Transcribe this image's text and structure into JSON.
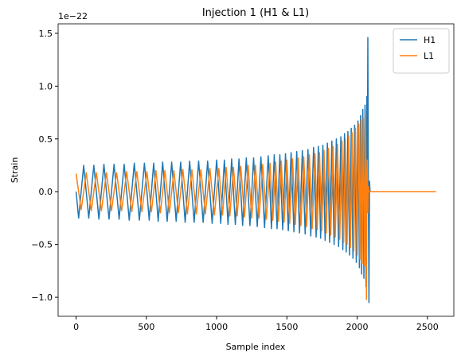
{
  "chart_data": {
    "type": "line",
    "title": "Injection 1 (H1 & L1)",
    "x_label": "Sample index",
    "y_label": "Strain",
    "y_offset_label": "1e−22",
    "xlim": [
      -128,
      2688
    ],
    "xticks": [
      0,
      500,
      1000,
      1500,
      2000,
      2500
    ],
    "ylim": [
      -1.18,
      1.59
    ],
    "yticks": [
      {
        "value": -1,
        "label": "−1.0"
      },
      {
        "value": -0.5,
        "label": "−0.5"
      },
      {
        "value": 0,
        "label": "0.0"
      },
      0.5,
      {
        "value": 1,
        "label": "1.0"
      },
      1.5
    ],
    "legend": "upper right",
    "x": [
      0,
      18,
      36,
      54,
      72,
      90,
      108,
      126,
      144,
      162,
      180,
      198,
      216,
      234,
      252,
      270,
      288,
      306,
      324,
      342,
      360,
      378,
      396,
      414,
      432,
      450,
      468,
      486,
      504,
      520,
      536,
      552,
      568,
      584,
      600,
      616,
      632,
      648,
      664,
      680,
      696,
      712,
      728,
      744,
      760,
      776,
      792,
      808,
      824,
      840,
      856,
      872,
      888,
      904,
      920,
      936,
      952,
      968,
      984,
      1000,
      1016,
      1029,
      1042,
      1055,
      1068,
      1081,
      1094,
      1107,
      1120,
      1133,
      1146,
      1159,
      1172,
      1185,
      1198,
      1211,
      1224,
      1237,
      1250,
      1263,
      1276,
      1289,
      1302,
      1315,
      1328,
      1341,
      1354,
      1367,
      1380,
      1390,
      1400,
      1410,
      1420,
      1430,
      1440,
      1450,
      1460,
      1470,
      1480,
      1490,
      1500,
      1510,
      1520,
      1530,
      1540,
      1550,
      1560,
      1570,
      1580,
      1590,
      1600,
      1610,
      1620,
      1630,
      1640,
      1650,
      1660,
      1670,
      1680,
      1690,
      1700,
      1708,
      1716,
      1724,
      1732,
      1740,
      1748,
      1756,
      1764,
      1772,
      1780,
      1788,
      1796,
      1804,
      1812,
      1820,
      1828,
      1836,
      1844,
      1852,
      1860,
      1868,
      1876,
      1884,
      1892,
      1898,
      1904,
      1910,
      1916,
      1922,
      1928,
      1934,
      1940,
      1946,
      1952,
      1958,
      1964,
      1970,
      1976,
      1982,
      1988,
      1994,
      2000,
      2006,
      2012,
      2016,
      2020,
      2024,
      2028,
      2032,
      2036,
      2040,
      2044,
      2048,
      2052,
      2056,
      2060,
      2063,
      2066,
      2069,
      2072,
      2076,
      2080,
      2084,
      2088,
      2092,
      2100,
      2560
    ],
    "series": [
      {
        "name": "H1",
        "color": "#1f77b4",
        "values": [
          0,
          -0.25,
          0,
          0.25,
          0,
          -0.25,
          0,
          0.25,
          0,
          -0.26,
          0,
          0.26,
          0,
          -0.26,
          0,
          0.26,
          0,
          -0.26,
          0,
          0.26,
          0,
          -0.27,
          0,
          0.27,
          0,
          -0.27,
          0,
          0.27,
          0,
          -0.27,
          0,
          0.27,
          0,
          -0.28,
          0,
          0.28,
          0,
          -0.28,
          0,
          0.28,
          0,
          -0.28,
          0,
          0.28,
          0,
          -0.29,
          0,
          0.29,
          0,
          -0.29,
          0,
          0.29,
          0,
          -0.29,
          0,
          0.29,
          0,
          -0.3,
          0,
          0.3,
          0,
          -0.3,
          0,
          0.3,
          0,
          -0.31,
          0,
          0.31,
          0,
          -0.31,
          0,
          0.31,
          0,
          -0.32,
          0,
          0.32,
          0,
          -0.32,
          0,
          0.32,
          0,
          -0.33,
          0,
          0.33,
          0,
          -0.34,
          0,
          0.34,
          0,
          -0.35,
          0,
          0.35,
          0,
          -0.35,
          0,
          0.35,
          0,
          -0.36,
          0,
          0.36,
          0,
          -0.37,
          0,
          0.37,
          0,
          -0.38,
          0,
          0.38,
          0,
          -0.39,
          0,
          0.39,
          0,
          -0.4,
          0,
          0.4,
          0,
          -0.42,
          0,
          0.42,
          0,
          -0.43,
          0,
          0.43,
          0,
          -0.44,
          0,
          0.44,
          0,
          -0.46,
          0,
          0.46,
          0,
          -0.48,
          0,
          0.48,
          0,
          -0.5,
          0,
          0.5,
          0,
          -0.52,
          0,
          0.52,
          0,
          -0.55,
          0,
          0.55,
          0,
          -0.57,
          0,
          0.57,
          0,
          -0.6,
          0,
          0.6,
          0,
          -0.63,
          0,
          0.63,
          0,
          -0.67,
          0,
          0.67,
          0,
          -0.72,
          0,
          0.72,
          0,
          -0.78,
          0,
          0.78,
          0,
          -0.82,
          0,
          0.82,
          0,
          -0.9,
          0,
          0.9,
          0,
          1.46,
          0,
          -1.05,
          0.1,
          0,
          0,
          0
        ]
      },
      {
        "name": "L1",
        "color": "#ff7f0e",
        "values": [
          0.17,
          0,
          -0.17,
          0,
          0.18,
          0,
          -0.18,
          0,
          0.18,
          0,
          -0.18,
          0,
          0.18,
          0,
          -0.18,
          0,
          0.18,
          0,
          -0.18,
          0,
          0.19,
          0,
          -0.19,
          0,
          0.19,
          0,
          -0.19,
          0,
          0.19,
          0,
          -0.19,
          0,
          0.2,
          0,
          -0.2,
          0,
          0.2,
          0,
          -0.2,
          0,
          0.2,
          0,
          -0.2,
          0,
          0.21,
          0,
          -0.21,
          0,
          0.21,
          0,
          -0.21,
          0,
          0.21,
          0,
          -0.21,
          0,
          0.22,
          0,
          -0.22,
          0,
          0.22,
          0,
          -0.22,
          0,
          0.23,
          0,
          -0.23,
          0,
          0.23,
          0,
          -0.23,
          0,
          0.24,
          0,
          -0.24,
          0,
          0.25,
          0,
          -0.25,
          0,
          0.25,
          0,
          -0.25,
          0,
          0.26,
          0,
          -0.26,
          0,
          0.27,
          0,
          -0.27,
          0,
          0.28,
          0,
          -0.28,
          0,
          0.29,
          0,
          -0.29,
          0,
          0.3,
          0,
          -0.3,
          0,
          0.31,
          0,
          -0.31,
          0,
          0.32,
          0,
          -0.32,
          0,
          0.33,
          0,
          -0.33,
          0,
          0.35,
          0,
          -0.35,
          0,
          0.36,
          0,
          -0.36,
          0,
          0.37,
          0,
          -0.37,
          0,
          0.39,
          0,
          -0.39,
          0,
          0.41,
          0,
          -0.41,
          0,
          0.43,
          0,
          -0.43,
          0,
          0.45,
          0,
          -0.45,
          0,
          0.48,
          0,
          -0.48,
          0,
          0.5,
          0,
          -0.5,
          0,
          0.53,
          0,
          -0.53,
          0,
          0.56,
          0,
          -0.56,
          0,
          0.6,
          0,
          -0.6,
          0,
          0.64,
          0,
          -0.64,
          0,
          0.68,
          0,
          -0.68,
          0,
          0.7,
          0,
          -0.7,
          0,
          0.73,
          0,
          -1.02,
          0,
          0.3,
          -0.2,
          0.05,
          0,
          0,
          0,
          0,
          0
        ]
      }
    ]
  }
}
